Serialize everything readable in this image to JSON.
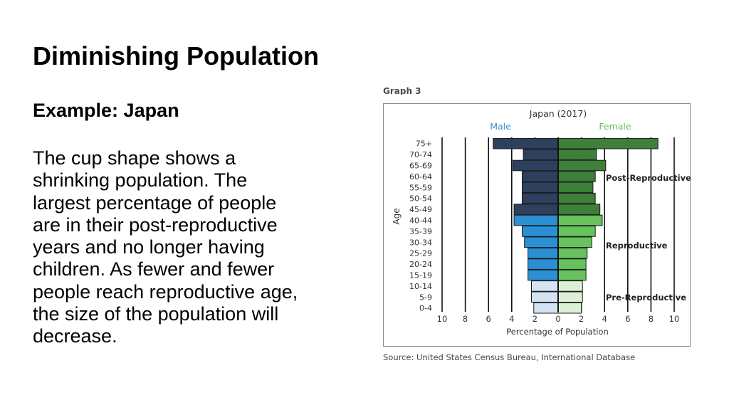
{
  "slide": {
    "title": "Diminishing Population",
    "subtitle": "Example:  Japan",
    "body_lines": [
      "The cup shape shows a",
      "shrinking population. The",
      "largest percentage of people",
      "are in their post-reproductive",
      "years and no longer having",
      "children. As fewer and fewer",
      "people reach reproductive age,",
      "the size of the population will",
      "decrease."
    ],
    "graph_tag": "Graph 3",
    "source": "Source: United States Census Bureau, International Database"
  },
  "chart_data": {
    "type": "bar",
    "orientation": "horizontal",
    "title": "Japan (2017)",
    "xlabel": "Percentage of Population",
    "ylabel": "Age",
    "categories": [
      "75+",
      "70-74",
      "65-69",
      "60-64",
      "55-59",
      "50-54",
      "45-49",
      "40-44",
      "35-39",
      "30-34",
      "25-29",
      "20-24",
      "15-19",
      "10-14",
      "5-9",
      "0-4"
    ],
    "series": [
      {
        "name": "Male",
        "values": [
          5.6,
          3.0,
          3.9,
          3.1,
          3.1,
          3.1,
          3.8,
          3.8,
          3.1,
          2.9,
          2.6,
          2.6,
          2.6,
          2.3,
          2.3,
          2.1
        ]
      },
      {
        "name": "Female",
        "values": [
          8.6,
          3.3,
          4.1,
          3.2,
          3.0,
          3.2,
          3.6,
          3.8,
          3.2,
          2.9,
          2.5,
          2.4,
          2.4,
          2.1,
          2.1,
          2.0
        ]
      }
    ],
    "x_ticks": [
      10,
      8,
      6,
      4,
      2,
      0,
      2,
      4,
      6,
      8,
      10
    ],
    "xlim": [
      -10,
      10
    ],
    "grid": "vertical",
    "stage_labels": [
      "Post-Reproductive",
      "Reproductive",
      "Pre-Reproductive"
    ],
    "stage_groups": [
      [
        0,
        6
      ],
      [
        7,
        12
      ],
      [
        13,
        15
      ]
    ],
    "colors": {
      "male": [
        "#2f3f5e",
        "#2b8fd4",
        "#d3e3f4"
      ],
      "female": [
        "#3e7f3a",
        "#67c25e",
        "#dcf0d6"
      ],
      "male_label": "#3a8fd6",
      "female_label": "#6bbf5f"
    }
  }
}
